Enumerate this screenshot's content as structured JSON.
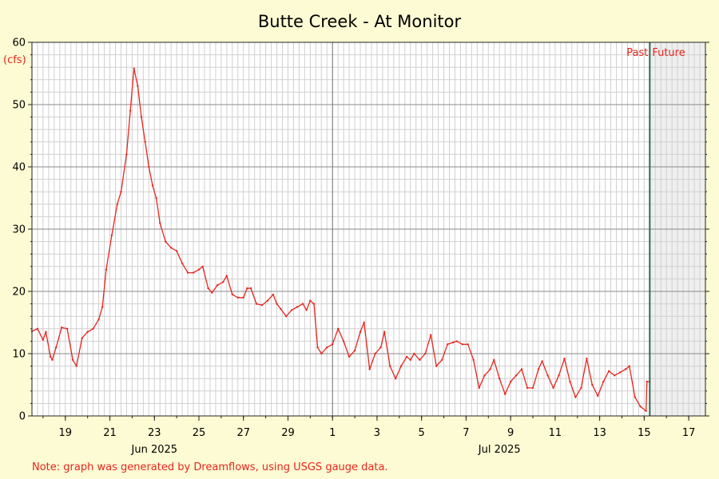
{
  "chart_data": {
    "type": "line",
    "title": "Butte Creek - At Monitor",
    "ylabel": "(cfs)",
    "xlabel": "",
    "ylim": [
      0,
      60
    ],
    "yticks": [
      0,
      10,
      20,
      30,
      40,
      50,
      60
    ],
    "xlim": [
      "2025-06-17T12:00",
      "2025-07-17T18:00"
    ],
    "x_tick_labels": [
      {
        "date": "2025-06-19",
        "label": "19"
      },
      {
        "date": "2025-06-21",
        "label": "21"
      },
      {
        "date": "2025-06-23",
        "label": "23"
      },
      {
        "date": "2025-06-25",
        "label": "25"
      },
      {
        "date": "2025-06-27",
        "label": "27"
      },
      {
        "date": "2025-06-29",
        "label": "29"
      },
      {
        "date": "2025-07-01",
        "label": "1"
      },
      {
        "date": "2025-07-03",
        "label": "3"
      },
      {
        "date": "2025-07-05",
        "label": "5"
      },
      {
        "date": "2025-07-07",
        "label": "7"
      },
      {
        "date": "2025-07-09",
        "label": "9"
      },
      {
        "date": "2025-07-11",
        "label": "11"
      },
      {
        "date": "2025-07-13",
        "label": "13"
      },
      {
        "date": "2025-07-15",
        "label": "15"
      },
      {
        "date": "2025-07-17",
        "label": "17"
      }
    ],
    "month_labels": [
      {
        "date": "2025-06-23T00:00",
        "label": "Jun 2025"
      },
      {
        "date": "2025-07-08T12:00",
        "label": "Jul 2025"
      }
    ],
    "month_boundary": "2025-07-01",
    "now": "2025-07-15T06:00",
    "past_label": "Past",
    "future_label": "Future",
    "grid": true,
    "legend": "none",
    "colors": {
      "line": "#e8251f",
      "now_line": "#2e6b4f",
      "future_shade": "#efefef",
      "background": "#fdfbd3"
    },
    "series": [
      {
        "values": [
          [
            "2025-06-17T12:00",
            13.6
          ],
          [
            "2025-06-17T18:00",
            14.0
          ],
          [
            "2025-06-18T00:00",
            12.2
          ],
          [
            "2025-06-18T03:00",
            13.5
          ],
          [
            "2025-06-18T08:00",
            9.5
          ],
          [
            "2025-06-18T10:00",
            9.0
          ],
          [
            "2025-06-18T14:00",
            11.0
          ],
          [
            "2025-06-18T20:00",
            14.2
          ],
          [
            "2025-06-19T02:00",
            14.0
          ],
          [
            "2025-06-19T08:00",
            9.0
          ],
          [
            "2025-06-19T12:00",
            8.0
          ],
          [
            "2025-06-19T18:00",
            12.5
          ],
          [
            "2025-06-20T00:00",
            13.5
          ],
          [
            "2025-06-20T06:00",
            14.0
          ],
          [
            "2025-06-20T12:00",
            15.5
          ],
          [
            "2025-06-20T16:00",
            17.5
          ],
          [
            "2025-06-20T20:00",
            23.5
          ],
          [
            "2025-06-21T02:00",
            29.0
          ],
          [
            "2025-06-21T08:00",
            34.0
          ],
          [
            "2025-06-21T12:00",
            36.0
          ],
          [
            "2025-06-21T18:00",
            42.0
          ],
          [
            "2025-06-21T22:00",
            49.0
          ],
          [
            "2025-06-22T02:00",
            55.8
          ],
          [
            "2025-06-22T06:00",
            53.0
          ],
          [
            "2025-06-22T10:00",
            48.0
          ],
          [
            "2025-06-22T14:00",
            44.0
          ],
          [
            "2025-06-22T18:00",
            40.0
          ],
          [
            "2025-06-22T22:00",
            37.0
          ],
          [
            "2025-06-23T02:00",
            35.0
          ],
          [
            "2025-06-23T06:00",
            31.0
          ],
          [
            "2025-06-23T12:00",
            28.0
          ],
          [
            "2025-06-23T18:00",
            27.0
          ],
          [
            "2025-06-24T00:00",
            26.5
          ],
          [
            "2025-06-24T06:00",
            24.5
          ],
          [
            "2025-06-24T12:00",
            23.0
          ],
          [
            "2025-06-24T18:00",
            23.0
          ],
          [
            "2025-06-25T00:00",
            23.5
          ],
          [
            "2025-06-25T04:00",
            24.0
          ],
          [
            "2025-06-25T10:00",
            20.5
          ],
          [
            "2025-06-25T14:00",
            19.8
          ],
          [
            "2025-06-25T20:00",
            21.0
          ],
          [
            "2025-06-26T02:00",
            21.5
          ],
          [
            "2025-06-26T06:00",
            22.5
          ],
          [
            "2025-06-26T12:00",
            19.5
          ],
          [
            "2025-06-26T18:00",
            19.0
          ],
          [
            "2025-06-27T00:00",
            19.0
          ],
          [
            "2025-06-27T04:00",
            20.5
          ],
          [
            "2025-06-27T08:00",
            20.5
          ],
          [
            "2025-06-27T14:00",
            18.0
          ],
          [
            "2025-06-27T20:00",
            17.8
          ],
          [
            "2025-06-28T02:00",
            18.5
          ],
          [
            "2025-06-28T08:00",
            19.5
          ],
          [
            "2025-06-28T12:00",
            18.0
          ],
          [
            "2025-06-28T16:00",
            17.2
          ],
          [
            "2025-06-28T22:00",
            16.0
          ],
          [
            "2025-06-29T04:00",
            17.0
          ],
          [
            "2025-06-29T10:00",
            17.5
          ],
          [
            "2025-06-29T16:00",
            18.0
          ],
          [
            "2025-06-29T20:00",
            17.0
          ],
          [
            "2025-06-30T00:00",
            18.5
          ],
          [
            "2025-06-30T04:00",
            18.0
          ],
          [
            "2025-06-30T08:00",
            11.0
          ],
          [
            "2025-06-30T12:00",
            10.0
          ],
          [
            "2025-06-30T18:00",
            11.0
          ],
          [
            "2025-07-01T00:00",
            11.5
          ],
          [
            "2025-07-01T06:00",
            14.0
          ],
          [
            "2025-07-01T12:00",
            12.0
          ],
          [
            "2025-07-01T18:00",
            9.5
          ],
          [
            "2025-07-02T00:00",
            10.5
          ],
          [
            "2025-07-02T06:00",
            13.5
          ],
          [
            "2025-07-02T10:00",
            15.0
          ],
          [
            "2025-07-02T16:00",
            7.5
          ],
          [
            "2025-07-02T22:00",
            10.0
          ],
          [
            "2025-07-03T04:00",
            11.0
          ],
          [
            "2025-07-03T08:00",
            13.5
          ],
          [
            "2025-07-03T14:00",
            8.0
          ],
          [
            "2025-07-03T20:00",
            6.0
          ],
          [
            "2025-07-04T02:00",
            8.0
          ],
          [
            "2025-07-04T08:00",
            9.5
          ],
          [
            "2025-07-04T12:00",
            9.0
          ],
          [
            "2025-07-04T16:00",
            10.0
          ],
          [
            "2025-07-04T22:00",
            9.0
          ],
          [
            "2025-07-05T04:00",
            10.0
          ],
          [
            "2025-07-05T10:00",
            13.0
          ],
          [
            "2025-07-05T16:00",
            8.0
          ],
          [
            "2025-07-05T22:00",
            9.0
          ],
          [
            "2025-07-06T04:00",
            11.5
          ],
          [
            "2025-07-06T10:00",
            11.8
          ],
          [
            "2025-07-06T14:00",
            12.0
          ],
          [
            "2025-07-06T20:00",
            11.5
          ],
          [
            "2025-07-07T02:00",
            11.5
          ],
          [
            "2025-07-07T08:00",
            9.0
          ],
          [
            "2025-07-07T14:00",
            4.5
          ],
          [
            "2025-07-07T20:00",
            6.5
          ],
          [
            "2025-07-08T02:00",
            7.5
          ],
          [
            "2025-07-08T06:00",
            9.0
          ],
          [
            "2025-07-08T12:00",
            6.0
          ],
          [
            "2025-07-08T18:00",
            3.5
          ],
          [
            "2025-07-09T00:00",
            5.5
          ],
          [
            "2025-07-09T06:00",
            6.5
          ],
          [
            "2025-07-09T12:00",
            7.5
          ],
          [
            "2025-07-09T18:00",
            4.5
          ],
          [
            "2025-07-10T00:00",
            4.5
          ],
          [
            "2025-07-10T06:00",
            7.5
          ],
          [
            "2025-07-10T10:00",
            8.8
          ],
          [
            "2025-07-10T16:00",
            6.5
          ],
          [
            "2025-07-10T22:00",
            4.5
          ],
          [
            "2025-07-11T04:00",
            6.5
          ],
          [
            "2025-07-11T10:00",
            9.2
          ],
          [
            "2025-07-11T16:00",
            5.5
          ],
          [
            "2025-07-11T22:00",
            3.0
          ],
          [
            "2025-07-12T04:00",
            4.5
          ],
          [
            "2025-07-12T10:00",
            9.2
          ],
          [
            "2025-07-12T16:00",
            5.0
          ],
          [
            "2025-07-12T22:00",
            3.2
          ],
          [
            "2025-07-13T04:00",
            5.5
          ],
          [
            "2025-07-13T10:00",
            7.2
          ],
          [
            "2025-07-13T16:00",
            6.5
          ],
          [
            "2025-07-13T22:00",
            7.0
          ],
          [
            "2025-07-14T04:00",
            7.5
          ],
          [
            "2025-07-14T08:00",
            8.0
          ],
          [
            "2025-07-14T14:00",
            3.0
          ],
          [
            "2025-07-14T20:00",
            1.5
          ],
          [
            "2025-07-15T02:00",
            0.8
          ],
          [
            "2025-07-15T03:00",
            5.5
          ],
          [
            "2025-07-15T06:00",
            5.5
          ]
        ]
      }
    ]
  },
  "footer": {
    "note": "Note: graph was generated by Dreamflows, using USGS gauge data."
  }
}
